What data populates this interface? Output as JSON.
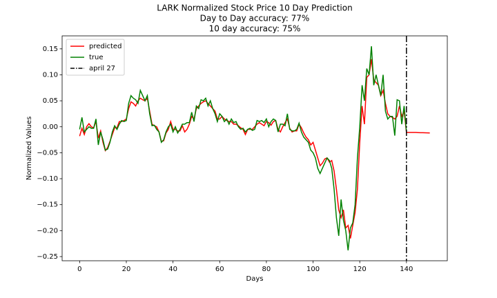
{
  "chart_data": {
    "type": "line",
    "title": "LARK Normalized Stock Price 10 Day Prediction",
    "subtitles": [
      "Day to Day accuracy: 77%",
      "10 day accuracy: 75%"
    ],
    "x_label": "Days",
    "y_label": "Normalized Values",
    "xlim": [
      -7.5,
      157.5
    ],
    "ylim": [
      -0.258,
      0.175
    ],
    "xticks": [
      0,
      20,
      40,
      60,
      80,
      100,
      120,
      140
    ],
    "yticks": [
      {
        "value": -0.25,
        "label": "−0.25"
      },
      {
        "value": -0.2,
        "label": "−0.20"
      },
      {
        "value": -0.15,
        "label": "−0.15"
      },
      {
        "value": -0.1,
        "label": "−0.10"
      },
      {
        "value": -0.05,
        "label": "−0.05"
      },
      {
        "value": 0,
        "label": "0.00"
      },
      {
        "value": 0.05,
        "label": "0.05"
      },
      {
        "value": 0.1,
        "label": "0.10"
      },
      0.15
    ],
    "legend": "upper left",
    "x": [
      0,
      1,
      2,
      3,
      4,
      5,
      6,
      7,
      8,
      9,
      10,
      11,
      12,
      13,
      14,
      15,
      16,
      17,
      18,
      19,
      20,
      21,
      22,
      23,
      24,
      25,
      26,
      27,
      28,
      29,
      30,
      31,
      32,
      33,
      34,
      35,
      36,
      37,
      38,
      39,
      40,
      41,
      42,
      43,
      44,
      45,
      46,
      47,
      48,
      49,
      50,
      51,
      52,
      53,
      54,
      55,
      56,
      57,
      58,
      59,
      60,
      61,
      62,
      63,
      64,
      65,
      66,
      67,
      68,
      69,
      70,
      71,
      72,
      73,
      74,
      75,
      76,
      77,
      78,
      79,
      80,
      81,
      82,
      83,
      84,
      85,
      86,
      87,
      88,
      89,
      90,
      91,
      92,
      93,
      94,
      95,
      96,
      97,
      98,
      99,
      100,
      101,
      102,
      103,
      104,
      105,
      106,
      107,
      108,
      109,
      110,
      111,
      112,
      113,
      114,
      115,
      116,
      117,
      118,
      119,
      120,
      121,
      122,
      123,
      124,
      125,
      126,
      127,
      128,
      129,
      130,
      131,
      132,
      133,
      134,
      135,
      136,
      137,
      138,
      139,
      140,
      141,
      142,
      143,
      144,
      145,
      146,
      147,
      148,
      149,
      150
    ],
    "series": [
      {
        "name": "predicted",
        "color": "#ff0000",
        "values": [
          -0.018,
          -0.003,
          -0.015,
          0.0,
          0.006,
          0.0,
          -0.002,
          0.01,
          -0.022,
          -0.008,
          -0.03,
          -0.046,
          -0.04,
          -0.028,
          -0.015,
          -0.002,
          -0.002,
          0.01,
          0.01,
          0.012,
          0.015,
          0.035,
          0.048,
          0.045,
          0.04,
          0.05,
          0.055,
          0.052,
          0.05,
          0.055,
          0.03,
          0.005,
          0.002,
          0.0,
          -0.01,
          -0.028,
          -0.027,
          -0.012,
          -0.005,
          0.01,
          -0.005,
          -0.005,
          -0.008,
          -0.008,
          0.002,
          -0.01,
          -0.005,
          0.005,
          0.02,
          0.015,
          0.035,
          0.04,
          0.045,
          0.048,
          0.05,
          0.045,
          0.04,
          0.035,
          0.03,
          0.015,
          0.015,
          0.02,
          0.015,
          0.012,
          0.01,
          0.01,
          0.005,
          0.005,
          0.002,
          -0.002,
          -0.005,
          -0.015,
          -0.005,
          -0.005,
          -0.005,
          0.0,
          0.005,
          0.008,
          0.005,
          0.002,
          0.01,
          0.008,
          0.003,
          0.01,
          0.012,
          -0.005,
          -0.01,
          0.0,
          0.008,
          0.015,
          -0.003,
          -0.01,
          -0.008,
          -0.008,
          0.005,
          -0.002,
          -0.012,
          -0.02,
          -0.025,
          -0.035,
          -0.03,
          -0.045,
          -0.06,
          -0.075,
          -0.07,
          -0.062,
          -0.06,
          -0.068,
          -0.065,
          -0.085,
          -0.12,
          -0.16,
          -0.175,
          -0.16,
          -0.195,
          -0.19,
          -0.215,
          -0.19,
          -0.165,
          -0.12,
          -0.03,
          0.04,
          0.005,
          0.095,
          0.1,
          0.13,
          0.09,
          0.085,
          0.08,
          0.06,
          0.07,
          0.045,
          0.025,
          0.02,
          0.018,
          0.015,
          0.02,
          0.04,
          0.02,
          0.03,
          -0.011,
          -0.011,
          -0.011,
          -0.011,
          -0.011,
          -0.0112,
          -0.0114,
          -0.0115,
          -0.0116,
          -0.0118,
          -0.012
        ]
      },
      {
        "name": "true",
        "color": "#008000",
        "values": [
          -0.005,
          0.018,
          -0.01,
          -0.005,
          0.0,
          -0.003,
          -0.003,
          0.015,
          -0.035,
          -0.01,
          -0.025,
          -0.045,
          -0.043,
          -0.03,
          -0.01,
          0.002,
          -0.005,
          0.005,
          0.012,
          0.01,
          0.012,
          0.045,
          0.06,
          0.055,
          0.052,
          0.045,
          0.07,
          0.06,
          0.05,
          0.06,
          0.025,
          0.002,
          0.003,
          -0.005,
          -0.01,
          -0.03,
          -0.025,
          -0.01,
          0.0,
          0.005,
          -0.01,
          0.0,
          -0.012,
          -0.005,
          0.005,
          0.005,
          0.008,
          0.008,
          0.028,
          0.01,
          0.04,
          0.035,
          0.052,
          0.05,
          0.055,
          0.04,
          0.05,
          0.035,
          0.025,
          0.01,
          0.025,
          0.02,
          0.01,
          0.015,
          0.005,
          0.015,
          0.008,
          0.01,
          0.0,
          -0.005,
          -0.003,
          -0.01,
          -0.005,
          -0.003,
          -0.007,
          -0.005,
          0.012,
          0.01,
          0.012,
          0.008,
          0.015,
          0.0,
          0.01,
          0.015,
          0.012,
          -0.01,
          0.005,
          0.005,
          0.002,
          0.025,
          -0.005,
          -0.008,
          -0.008,
          -0.005,
          0.007,
          -0.01,
          -0.02,
          -0.025,
          -0.03,
          -0.045,
          -0.05,
          -0.06,
          -0.08,
          -0.09,
          -0.08,
          -0.07,
          -0.06,
          -0.065,
          -0.08,
          -0.12,
          -0.175,
          -0.21,
          -0.14,
          -0.18,
          -0.2,
          -0.238,
          -0.195,
          -0.185,
          -0.15,
          -0.06,
          0.0,
          0.08,
          0.05,
          0.112,
          0.1,
          0.155,
          0.08,
          0.1,
          0.08,
          0.06,
          0.1,
          0.03,
          0.015,
          0.02,
          0.02,
          -0.017,
          0.052,
          0.05,
          0.005,
          0.04,
          -0.01,
          null,
          null,
          null,
          null,
          null,
          null,
          null,
          null,
          null,
          null
        ]
      }
    ],
    "vline": {
      "name": "april 27",
      "x": 140,
      "color": "#000000"
    }
  }
}
